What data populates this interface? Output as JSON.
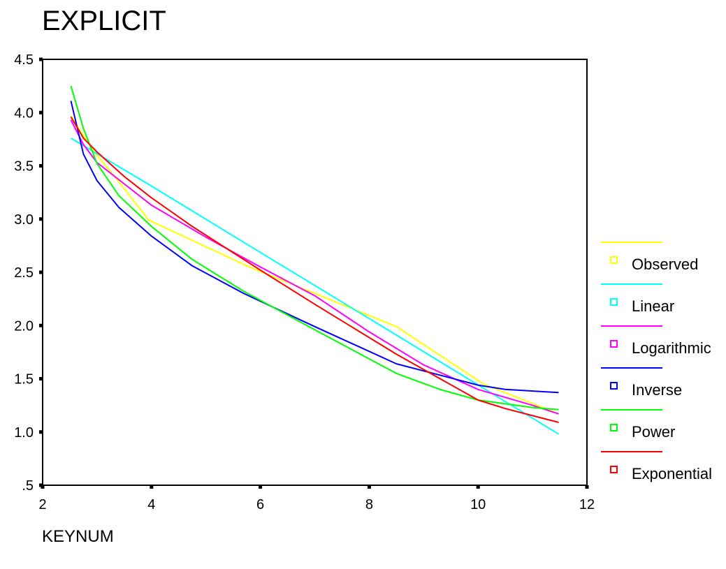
{
  "chart_data": {
    "type": "line",
    "title": "EXPLICIT",
    "xlabel": "KEYNUM",
    "ylabel": "",
    "xlim": [
      2,
      12
    ],
    "ylim": [
      0.5,
      4.5
    ],
    "x_ticks": [
      2,
      4,
      6,
      8,
      10,
      12
    ],
    "x_tick_labels": [
      "2",
      "4",
      "6",
      "8",
      "10",
      "12"
    ],
    "y_ticks": [
      0.5,
      1.0,
      1.5,
      2.0,
      2.5,
      3.0,
      3.5,
      4.0,
      4.5
    ],
    "y_tick_labels": [
      ".5",
      "1.0",
      "1.5",
      "2.0",
      "2.5",
      "3.0",
      "3.5",
      "4.0",
      "4.5"
    ],
    "grid": false,
    "legend_position": "right",
    "series": [
      {
        "name": "Observed",
        "color": "#ffff00",
        "x": [
          2.52,
          2.75,
          3.0,
          3.4,
          3.95,
          5.8,
          8.5,
          10.1,
          11.48
        ],
        "y": [
          3.97,
          3.78,
          3.6,
          3.35,
          2.99,
          2.55,
          1.99,
          1.45,
          1.17
        ]
      },
      {
        "name": "Linear",
        "color": "#00ffff",
        "x": [
          2.52,
          4.0,
          5.7,
          8.5,
          11.48
        ],
        "y": [
          3.76,
          3.31,
          2.78,
          1.91,
          0.98
        ]
      },
      {
        "name": "Logarithmic",
        "color": "#ff00ff",
        "x": [
          2.52,
          2.75,
          3.0,
          3.5,
          4.0,
          5.0,
          6.0,
          7.0,
          8.0,
          9.0,
          10.0,
          11.0,
          11.48
        ],
        "y": [
          3.93,
          3.7,
          3.53,
          3.33,
          3.13,
          2.83,
          2.55,
          2.28,
          1.94,
          1.63,
          1.4,
          1.25,
          1.17
        ]
      },
      {
        "name": "Inverse",
        "color": "#0000ff",
        "x": [
          2.52,
          2.75,
          3.0,
          3.4,
          4.0,
          4.75,
          5.7,
          7.0,
          8.5,
          10.0,
          10.5,
          11.48
        ],
        "y": [
          4.11,
          3.61,
          3.36,
          3.11,
          2.84,
          2.56,
          2.3,
          1.99,
          1.64,
          1.44,
          1.4,
          1.37
        ]
      },
      {
        "name": "Power",
        "color": "#00ff00",
        "x": [
          2.52,
          2.75,
          3.0,
          3.4,
          4.0,
          4.75,
          5.7,
          7.0,
          8.5,
          9.3,
          10.0,
          11.0,
          11.48
        ],
        "y": [
          4.25,
          3.85,
          3.52,
          3.22,
          2.93,
          2.62,
          2.32,
          1.96,
          1.55,
          1.4,
          1.3,
          1.23,
          1.21
        ]
      },
      {
        "name": "Exponential",
        "color": "#ff0000",
        "x": [
          2.52,
          2.75,
          3.0,
          3.5,
          4.0,
          4.75,
          6.0,
          7.0,
          8.5,
          10.0,
          10.5,
          11.48
        ],
        "y": [
          3.96,
          3.76,
          3.63,
          3.4,
          3.2,
          2.93,
          2.52,
          2.2,
          1.73,
          1.3,
          1.22,
          1.09
        ]
      }
    ]
  }
}
